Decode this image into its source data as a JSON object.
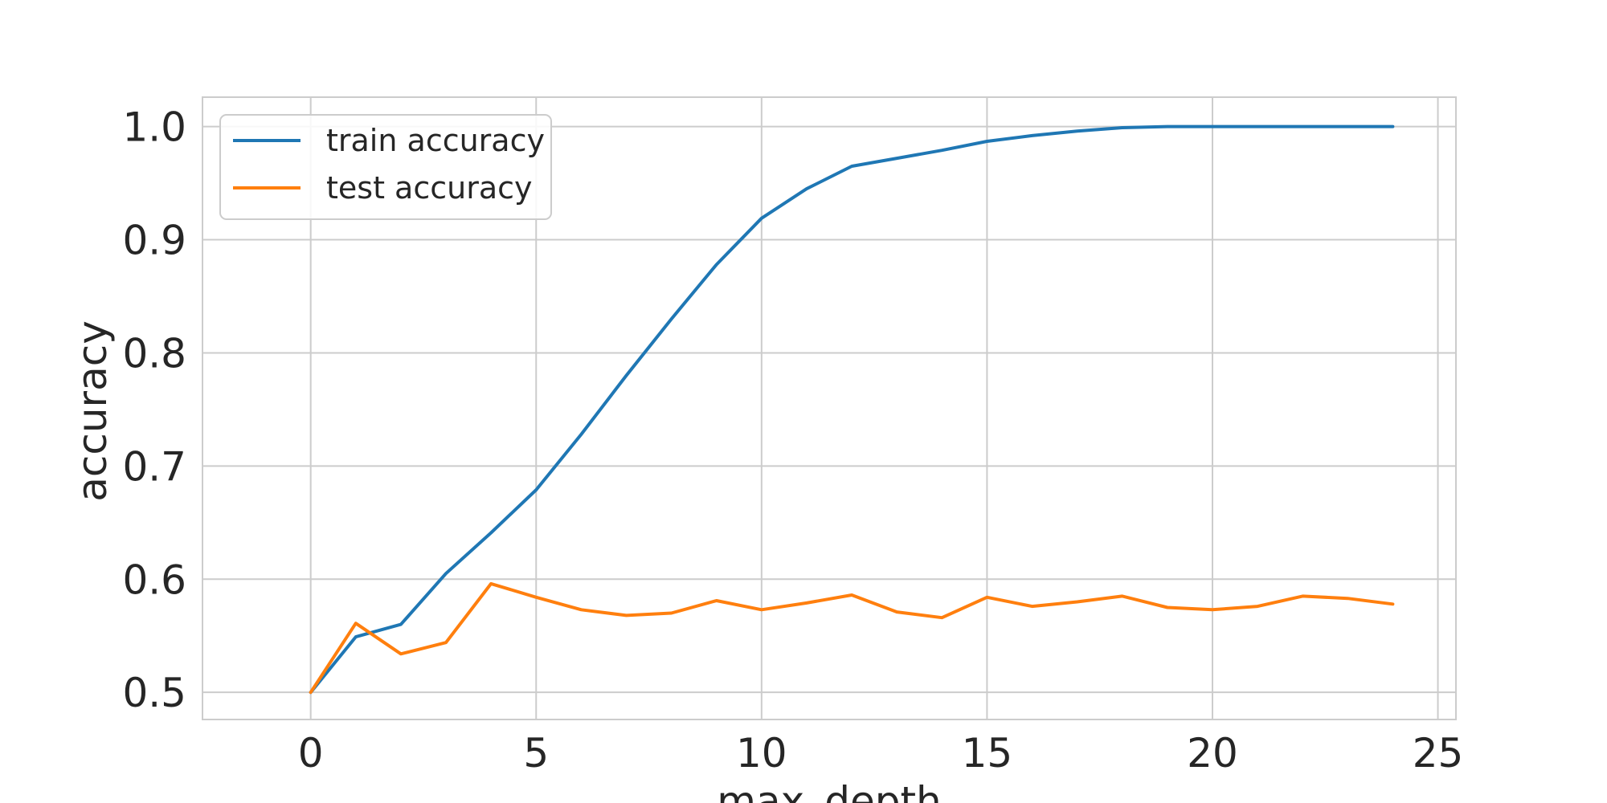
{
  "chart_data": {
    "type": "line",
    "xlabel": "max_depth",
    "ylabel": "accuracy",
    "xlim": [
      -2.4,
      25.4
    ],
    "ylim": [
      0.476,
      1.026
    ],
    "xticks": [
      "0",
      "5",
      "10",
      "15",
      "20",
      "25"
    ],
    "yticks": [
      "0.5",
      "0.6",
      "0.7",
      "0.8",
      "0.9",
      "1.0"
    ],
    "grid": true,
    "legend_position": "top-left",
    "x": [
      0,
      1,
      2,
      3,
      4,
      5,
      6,
      7,
      8,
      9,
      10,
      11,
      12,
      13,
      14,
      15,
      16,
      17,
      18,
      19,
      20,
      21,
      22,
      23,
      24
    ],
    "series": [
      {
        "name": "train accuracy",
        "color": "#1f77b4",
        "values": [
          0.5,
          0.549,
          0.56,
          0.605,
          0.641,
          0.679,
          0.728,
          0.78,
          0.83,
          0.878,
          0.919,
          0.945,
          0.965,
          0.972,
          0.979,
          0.987,
          0.992,
          0.996,
          0.999,
          1.0,
          1.0,
          1.0,
          1.0,
          1.0,
          1.0
        ]
      },
      {
        "name": "test accuracy",
        "color": "#ff7f0e",
        "values": [
          0.5,
          0.561,
          0.534,
          0.544,
          0.596,
          0.584,
          0.573,
          0.568,
          0.57,
          0.581,
          0.573,
          0.579,
          0.586,
          0.571,
          0.566,
          0.584,
          0.576,
          0.58,
          0.585,
          0.575,
          0.573,
          0.576,
          0.585,
          0.583,
          0.578
        ]
      }
    ]
  }
}
